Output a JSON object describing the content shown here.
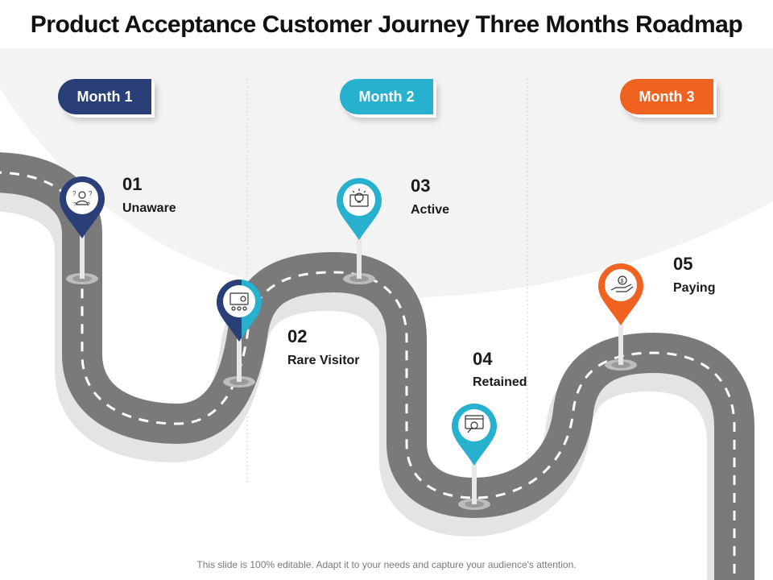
{
  "title": "Product Acceptance Customer Journey Three Months Roadmap",
  "months": [
    {
      "label": "Month 1",
      "color": "#2a3f78"
    },
    {
      "label": "Month 2",
      "color": "#27b1cf"
    },
    {
      "label": "Month 3",
      "color": "#f0621f"
    }
  ],
  "stages": [
    {
      "number": "01",
      "label": "Unaware",
      "color": "#2a3f78",
      "icon": "confused-person-icon"
    },
    {
      "number": "02",
      "label": "Rare Visitor",
      "color": "#2a3f78",
      "icon": "audience-screen-icon"
    },
    {
      "number": "03",
      "label": "Active",
      "color": "#27b1cf",
      "icon": "idea-bulb-icon"
    },
    {
      "number": "04",
      "label": "Retained",
      "color": "#27b1cf",
      "icon": "search-analysis-icon"
    },
    {
      "number": "05",
      "label": "Paying",
      "color": "#f0621f",
      "icon": "dollar-hand-icon"
    }
  ],
  "footer": "This slide is 100% editable. Adapt it to your needs and capture your audience's attention."
}
